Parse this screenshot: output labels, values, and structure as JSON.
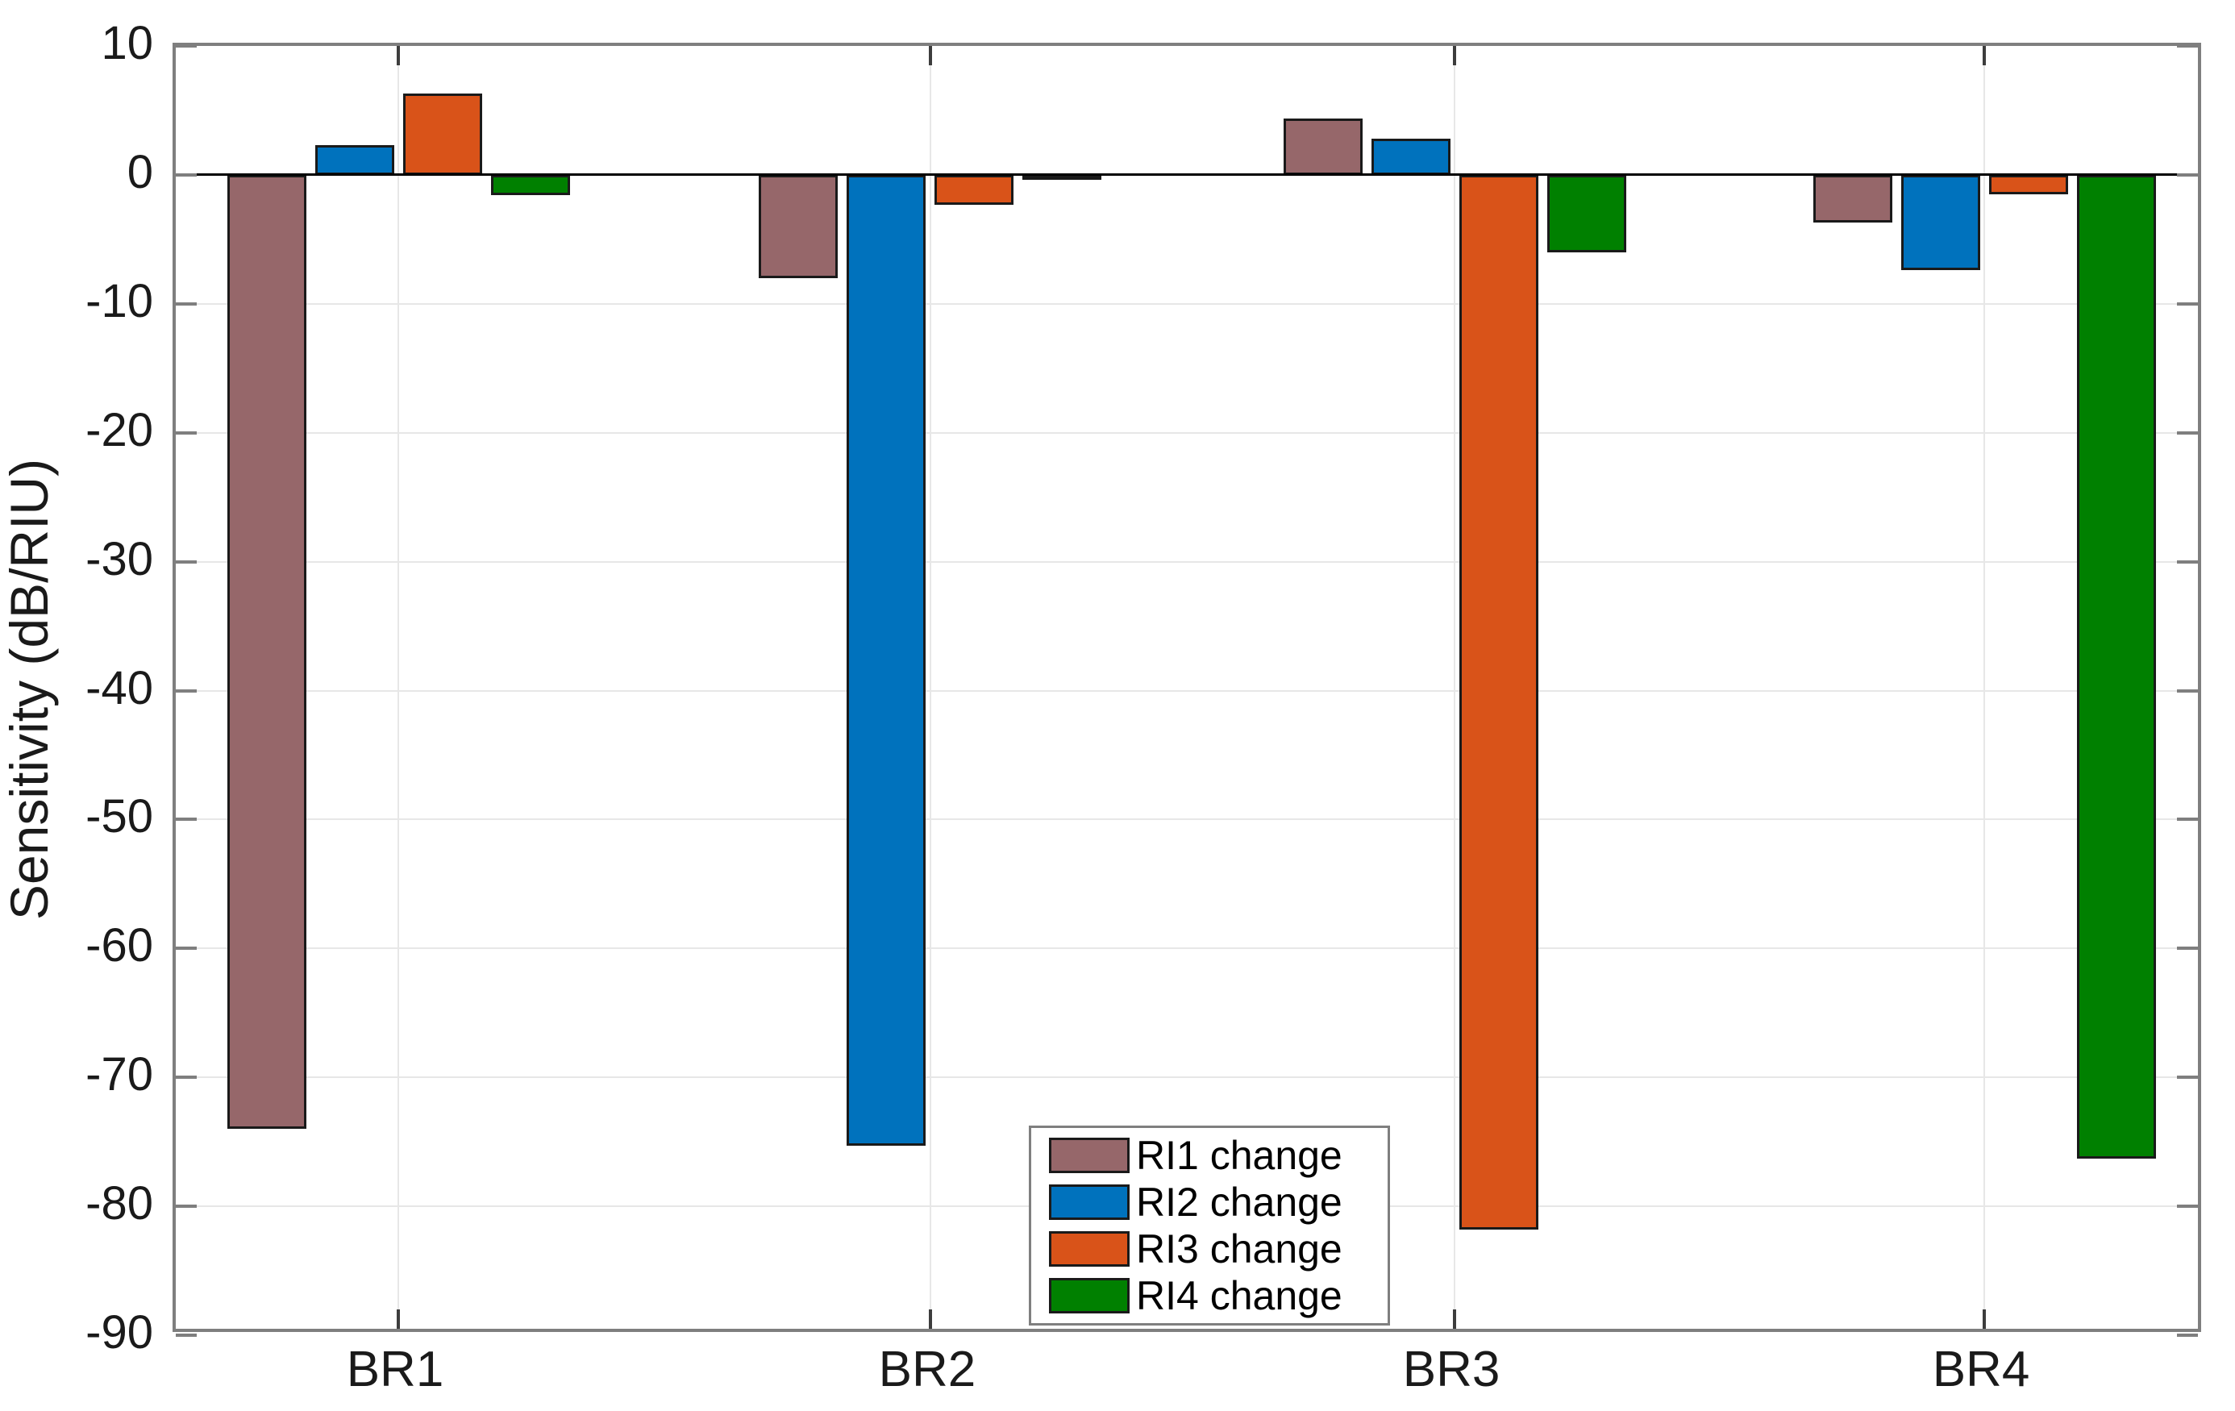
{
  "figure": {
    "background": "#ffffff"
  },
  "chart_data": {
    "type": "bar",
    "title": "",
    "xlabel": "",
    "ylabel": "Sensitivity (dB/RIU)",
    "categories": [
      "BR1",
      "BR2",
      "BR3",
      "BR4"
    ],
    "series": [
      {
        "name": "RI1 change",
        "color": "#96676A",
        "values": [
          -74.0,
          -8.0,
          4.4,
          -3.7
        ]
      },
      {
        "name": "RI2 change",
        "color": "#0072BD",
        "values": [
          2.3,
          -75.3,
          2.8,
          -7.4
        ]
      },
      {
        "name": "RI3 change",
        "color": "#D95319",
        "values": [
          6.3,
          -2.3,
          -81.8,
          -1.5
        ]
      },
      {
        "name": "RI4 change",
        "color": "#008000",
        "values": [
          -1.6,
          -0.3,
          -6.0,
          -76.3
        ]
      }
    ],
    "ylim": [
      -90,
      10
    ],
    "ytick_step": 10,
    "yticks": [
      10,
      0,
      -10,
      -20,
      -30,
      -40,
      -50,
      -60,
      -70,
      -80,
      -90
    ],
    "grid": true,
    "legend_position": "bottom-center-right",
    "colors": {
      "axis_box": "#7f7f7f",
      "gridline": "#e7e7e7",
      "zero_line": "#000000",
      "bar_edge": "#1a1a1a",
      "tick_label": "#1a1a1a"
    }
  }
}
